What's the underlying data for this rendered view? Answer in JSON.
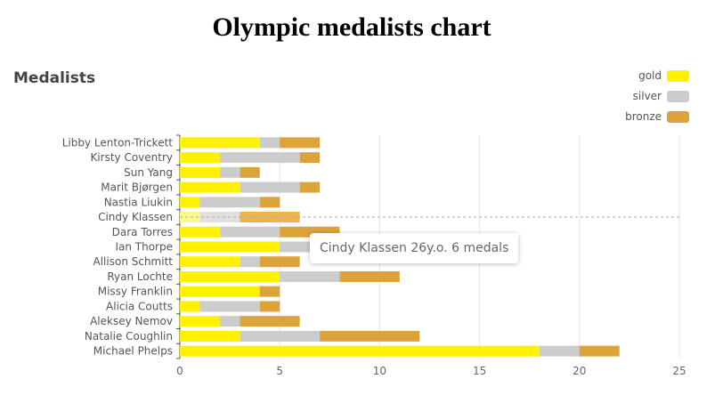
{
  "page": {
    "title": "Olympic medalists chart"
  },
  "chart_data": {
    "type": "bar",
    "orientation": "horizontal",
    "stacked": true,
    "title": "Medalists",
    "categories": [
      "Michael Phelps",
      "Natalie Coughlin",
      "Aleksey Nemov",
      "Alicia Coutts",
      "Missy Franklin",
      "Ryan Lochte",
      "Allison Schmitt",
      "Ian Thorpe",
      "Dara Torres",
      "Cindy Klassen",
      "Nastia Liukin",
      "Marit Bjørgen",
      "Sun Yang",
      "Kirsty Coventry",
      "Libby Lenton-Trickett"
    ],
    "series": [
      {
        "name": "gold",
        "color": "#fff200",
        "values": [
          18,
          3,
          2,
          1,
          4,
          5,
          3,
          5,
          2,
          1,
          1,
          3,
          2,
          2,
          4
        ]
      },
      {
        "name": "silver",
        "color": "#cccccc",
        "values": [
          2,
          4,
          1,
          3,
          0,
          3,
          1,
          3,
          3,
          2,
          3,
          3,
          1,
          4,
          1
        ]
      },
      {
        "name": "bronze",
        "color": "#dda33b",
        "values": [
          2,
          5,
          3,
          1,
          1,
          3,
          2,
          0,
          3,
          3,
          1,
          1,
          1,
          1,
          2
        ]
      }
    ],
    "xticks": [
      0,
      5,
      10,
      15,
      20,
      25
    ],
    "xlim": [
      0,
      25
    ],
    "grid": true,
    "legend_position": "top-right",
    "highlighted_category": "Cindy Klassen",
    "tooltip": "Cindy Klassen 26y.o. 6 medals"
  }
}
